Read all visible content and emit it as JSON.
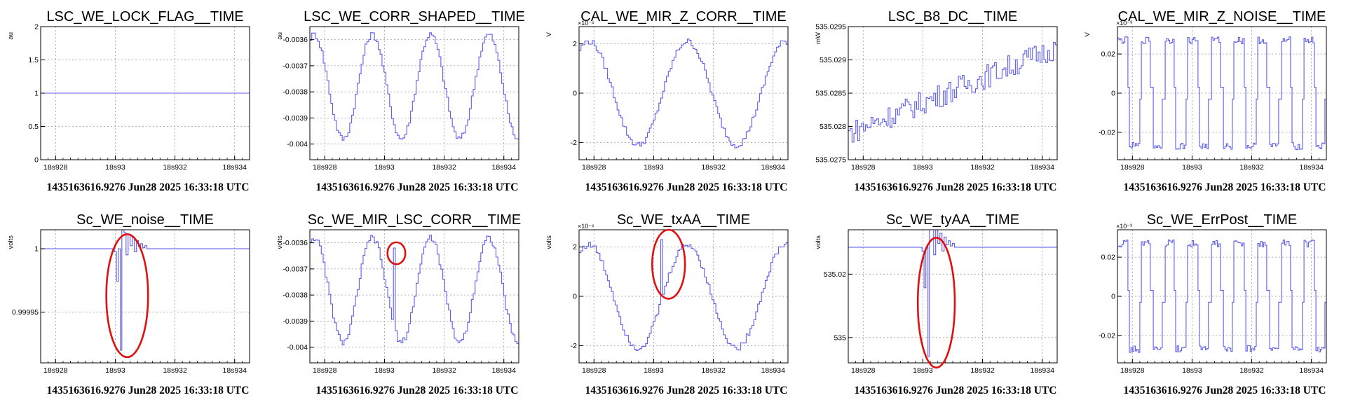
{
  "colors": {
    "series": "#5c5cf0",
    "annotation": "#e01010",
    "grid": "#9a9a9a"
  },
  "chart_data": [
    {
      "type": "line",
      "title": "LSC_WE_LOCK_FLAG__TIME",
      "ylabel": "au",
      "yexp": "",
      "caption": "1435163616.9276 Jun28 2025 16:33:18 UTC",
      "xlim": [
        0,
        7
      ],
      "ylim": [
        0,
        2
      ],
      "xticks": [
        {
          "v": 0.5,
          "label": "18s928"
        },
        {
          "v": 2.5,
          "label": "18s93"
        },
        {
          "v": 4.5,
          "label": "18s932"
        },
        {
          "v": 6.5,
          "label": "18s934"
        }
      ],
      "yticks": [
        {
          "v": 0,
          "label": "0"
        },
        {
          "v": 0.5,
          "label": "0.5"
        },
        {
          "v": 1,
          "label": "1"
        },
        {
          "v": 1.5,
          "label": "1.5"
        },
        {
          "v": 2,
          "label": "2"
        }
      ],
      "gen": {
        "kind": "const",
        "value": 1
      },
      "annotations": []
    },
    {
      "type": "line",
      "title": "LSC_WE_CORR_SHAPED__TIME",
      "ylabel": "au",
      "yexp": "",
      "caption": "1435163616.9276 Jun28 2025 16:33:18 UTC",
      "xlim": [
        0,
        7
      ],
      "ylim": [
        -0.00406,
        -0.00355
      ],
      "xticks": [
        {
          "v": 0.5,
          "label": "18s928"
        },
        {
          "v": 2.5,
          "label": "18s93"
        },
        {
          "v": 4.5,
          "label": "18s932"
        },
        {
          "v": 6.5,
          "label": "18s934"
        }
      ],
      "yticks": [
        {
          "v": -0.0036,
          "label": "-0.0036"
        },
        {
          "v": -0.0037,
          "label": "-0.0037"
        },
        {
          "v": -0.0038,
          "label": "-0.0038"
        },
        {
          "v": -0.0039,
          "label": "-0.0039"
        },
        {
          "v": -0.004,
          "label": "-0.004"
        }
      ],
      "gen": {
        "kind": "sine",
        "mean": -0.00378,
        "amp": 0.0002,
        "period": 1.95,
        "phase": 1.2,
        "steps": 110
      },
      "annotations": []
    },
    {
      "type": "line",
      "title": "CAL_WE_MIR_Z_CORR__TIME",
      "ylabel": "V",
      "yexp": "×10⁻⁶",
      "caption": "1435163616.9276 Jun28 2025 16:33:18 UTC",
      "xlim": [
        0,
        7
      ],
      "ylim": [
        -2.7,
        2.7
      ],
      "xticks": [
        {
          "v": 0.5,
          "label": "18s928"
        },
        {
          "v": 2.5,
          "label": "18s93"
        },
        {
          "v": 4.5,
          "label": "18s932"
        },
        {
          "v": 6.5,
          "label": "18s934"
        }
      ],
      "yticks": [
        {
          "v": 2,
          "label": "2"
        },
        {
          "v": 0,
          "label": "0"
        },
        {
          "v": -2,
          "label": "-2"
        }
      ],
      "gen": {
        "kind": "sine",
        "mean": 0,
        "amp": 2.1,
        "period": 3.3,
        "phase": 1.0,
        "steps": 110
      },
      "annotations": []
    },
    {
      "type": "line",
      "title": "LSC_B8_DC__TIME",
      "ylabel": "mW",
      "yexp": "",
      "caption": "1435163616.9276 Jun28 2025 16:33:18 UTC",
      "xlim": [
        0,
        7
      ],
      "ylim": [
        535.0275,
        535.0295
      ],
      "xticks": [
        {
          "v": 0.5,
          "label": "18s928"
        },
        {
          "v": 2.5,
          "label": "18s93"
        },
        {
          "v": 4.5,
          "label": "18s932"
        },
        {
          "v": 6.5,
          "label": "18s934"
        }
      ],
      "yticks": [
        {
          "v": 535.0275,
          "label": "535.0275"
        },
        {
          "v": 535.028,
          "label": "535.028"
        },
        {
          "v": 535.0285,
          "label": "535.0285"
        },
        {
          "v": 535.029,
          "label": "535.029"
        },
        {
          "v": 535.0295,
          "label": "535.0295"
        }
      ],
      "gen": {
        "kind": "trend",
        "start": 535.0279,
        "end": 535.0292,
        "noise": 0.00018,
        "steps": 110
      },
      "annotations": []
    },
    {
      "type": "line",
      "title": "CAL_WE_MIR_Z_NOISE__TIME",
      "ylabel": "V",
      "yexp": "×10⁻³",
      "caption": "1435163616.9276 Jun28 2025 16:33:18 UTC",
      "xlim": [
        0,
        7
      ],
      "ylim": [
        -0.034,
        0.034
      ],
      "xticks": [
        {
          "v": 0.5,
          "label": "18s928"
        },
        {
          "v": 2.5,
          "label": "18s93"
        },
        {
          "v": 4.5,
          "label": "18s932"
        },
        {
          "v": 6.5,
          "label": "18s934"
        }
      ],
      "yticks": [
        {
          "v": 0.02,
          "label": "0.02"
        },
        {
          "v": 0,
          "label": "0"
        },
        {
          "v": -0.02,
          "label": "-0.02"
        }
      ],
      "gen": {
        "kind": "square",
        "amp": 0.03,
        "period": 0.78,
        "steps": 140
      },
      "annotations": []
    },
    {
      "type": "line",
      "title": "Sc_WE_noise__TIME",
      "ylabel": "volts",
      "yexp": "",
      "caption": "1435163616.9276 Jun28 2025 16:33:18 UTC",
      "xlim": [
        0,
        7
      ],
      "ylim": [
        0.99991,
        1.000015
      ],
      "xticks": [
        {
          "v": 0.5,
          "label": "18s928"
        },
        {
          "v": 2.5,
          "label": "18s93"
        },
        {
          "v": 4.5,
          "label": "18s932"
        },
        {
          "v": 6.5,
          "label": "18s934"
        }
      ],
      "yticks": [
        {
          "v": 1,
          "label": "1"
        },
        {
          "v": 0.99995,
          "label": "0.99995"
        }
      ],
      "gen": {
        "kind": "glitch",
        "base": 1,
        "glitch_x": 2.72,
        "drop": 0.99992,
        "ring": 8e-06
      },
      "annotations": [
        {
          "cx": 2.9,
          "cy": 0.999963,
          "rx": 0.7,
          "ry": 4.85e-05
        }
      ]
    },
    {
      "type": "line",
      "title": "Sc_WE_MIR_LSC_CORR__TIME",
      "ylabel": "volts",
      "yexp": "",
      "caption": "1435163616.9276 Jun28 2025 16:33:18 UTC",
      "xlim": [
        0,
        7
      ],
      "ylim": [
        -0.00406,
        -0.00355
      ],
      "xticks": [
        {
          "v": 0.5,
          "label": "18s928"
        },
        {
          "v": 2.5,
          "label": "18s93"
        },
        {
          "v": 4.5,
          "label": "18s932"
        },
        {
          "v": 6.5,
          "label": "18s934"
        }
      ],
      "yticks": [
        {
          "v": -0.0036,
          "label": "-0.0036"
        },
        {
          "v": -0.0037,
          "label": "-0.0037"
        },
        {
          "v": -0.0038,
          "label": "-0.0038"
        },
        {
          "v": -0.0039,
          "label": "-0.0039"
        },
        {
          "v": -0.004,
          "label": "-0.004"
        }
      ],
      "gen": {
        "kind": "sine",
        "mean": -0.00378,
        "amp": 0.0002,
        "period": 1.95,
        "phase": 1.2,
        "steps": 110,
        "spike_x": 2.8,
        "spike": -0.00362
      },
      "annotations": [
        {
          "cx": 2.9,
          "cy": -0.00364,
          "rx": 0.3,
          "ry": 4.2e-05
        }
      ]
    },
    {
      "type": "line",
      "title": "Sc_WE_txAA__TIME",
      "ylabel": "volts",
      "yexp": "×10⁻⁶",
      "caption": "1435163616.9276 Jun28 2025 16:33:18 UTC",
      "xlim": [
        0,
        7
      ],
      "ylim": [
        -2.7,
        2.7
      ],
      "xticks": [
        {
          "v": 0.5,
          "label": "18s928"
        },
        {
          "v": 2.5,
          "label": "18s93"
        },
        {
          "v": 4.5,
          "label": "18s932"
        },
        {
          "v": 6.5,
          "label": "18s934"
        }
      ],
      "yticks": [
        {
          "v": 2,
          "label": "2"
        },
        {
          "v": 0,
          "label": "0"
        },
        {
          "v": -2,
          "label": "-2"
        }
      ],
      "gen": {
        "kind": "sine",
        "mean": 0,
        "amp": 2.1,
        "period": 3.3,
        "phase": 1.0,
        "steps": 110,
        "spike_x": 2.72,
        "spike": 2.3
      },
      "annotations": [
        {
          "cx": 3.0,
          "cy": 1.3,
          "rx": 0.55,
          "ry": 1.4
        }
      ]
    },
    {
      "type": "line",
      "title": "Sc_WE_tyAA__TIME",
      "ylabel": "volts",
      "yexp": "",
      "caption": "1435163616.9276 Jun28 2025 16:33:18 UTC",
      "xlim": [
        0,
        7
      ],
      "ylim": [
        534.992,
        535.034
      ],
      "xticks": [
        {
          "v": 0.5,
          "label": "18s928"
        },
        {
          "v": 2.5,
          "label": "18s93"
        },
        {
          "v": 4.5,
          "label": "18s932"
        },
        {
          "v": 6.5,
          "label": "18s934"
        }
      ],
      "yticks": [
        {
          "v": 535.02,
          "label": "535.02"
        },
        {
          "v": 535,
          "label": "535"
        }
      ],
      "gen": {
        "kind": "glitch",
        "base": 535.0285,
        "glitch_x": 2.72,
        "drop": 534.994,
        "ring": 0.004
      },
      "annotations": [
        {
          "cx": 2.95,
          "cy": 535.011,
          "rx": 0.62,
          "ry": 0.0205
        }
      ]
    },
    {
      "type": "line",
      "title": "Sc_WE_ErrPost__TIME",
      "ylabel": "",
      "yexp": "×10⁻³",
      "caption": "1435163616.9276 Jun28 2025 16:33:18 UTC",
      "xlim": [
        0,
        7
      ],
      "ylim": [
        -0.034,
        0.034
      ],
      "xticks": [
        {
          "v": 0.5,
          "label": "18s928"
        },
        {
          "v": 2.5,
          "label": "18s93"
        },
        {
          "v": 4.5,
          "label": "18s932"
        },
        {
          "v": 6.5,
          "label": "18s934"
        }
      ],
      "yticks": [
        {
          "v": 0.02,
          "label": "0.02"
        },
        {
          "v": 0,
          "label": "0"
        },
        {
          "v": -0.02,
          "label": "-0.02"
        }
      ],
      "gen": {
        "kind": "square",
        "amp": 0.03,
        "period": 0.78,
        "steps": 140
      },
      "annotations": []
    }
  ]
}
